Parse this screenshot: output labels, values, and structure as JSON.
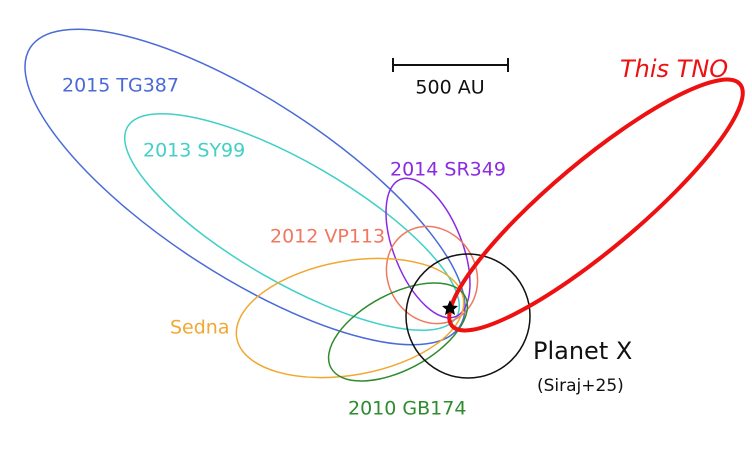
{
  "scale_bar": {
    "label": "500 AU"
  },
  "orbits": [
    {
      "label": "2015 TG387"
    },
    {
      "label": "2013 SY99"
    },
    {
      "label": "2014 SR349"
    },
    {
      "label": "2012 VP113"
    },
    {
      "label": "Sedna"
    },
    {
      "label": "2010 GB174"
    },
    {
      "label": "This TNO"
    }
  ],
  "planet": {
    "label": "Planet X",
    "note": "(Siraj+25)"
  }
}
